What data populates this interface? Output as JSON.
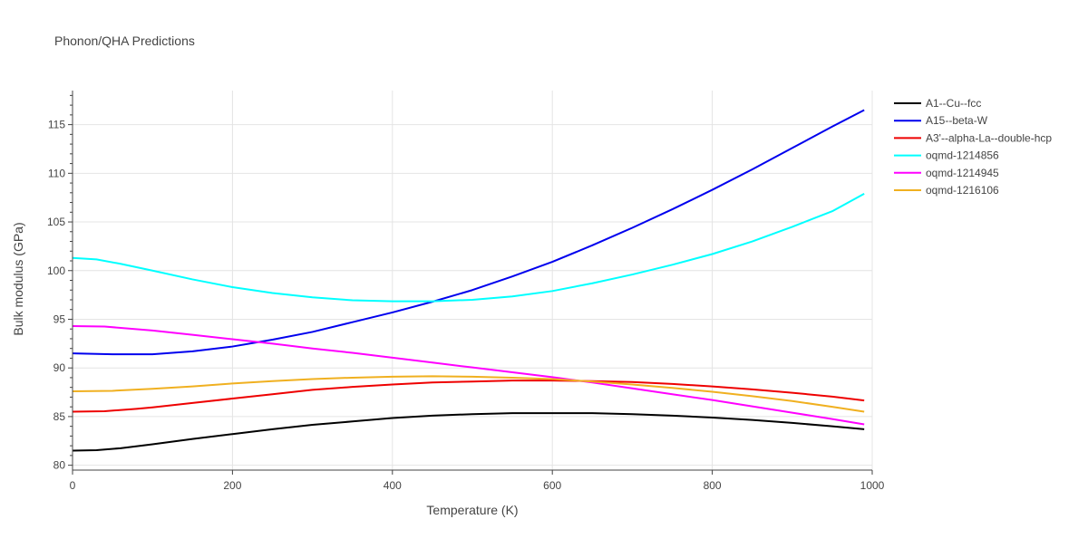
{
  "chart_data": {
    "type": "line",
    "title": "Phonon/QHA Predictions",
    "xlabel": "Temperature (K)",
    "ylabel": "Bulk modulus (GPa)",
    "xlim": [
      0,
      1000
    ],
    "ylim": [
      79.5,
      118.5
    ],
    "xticks": [
      0,
      200,
      400,
      600,
      800,
      1000
    ],
    "yticks": [
      80,
      85,
      90,
      95,
      100,
      105,
      110,
      115
    ],
    "grid": true,
    "legend_position": "top-right",
    "series": [
      {
        "name": "A1--Cu--fcc",
        "color": "#000000",
        "x": [
          0,
          30,
          60,
          100,
          150,
          200,
          250,
          300,
          350,
          400,
          450,
          500,
          550,
          600,
          650,
          700,
          750,
          800,
          850,
          900,
          950,
          990
        ],
        "y": [
          81.5,
          81.55,
          81.75,
          82.15,
          82.7,
          83.2,
          83.7,
          84.15,
          84.5,
          84.85,
          85.1,
          85.25,
          85.35,
          85.35,
          85.35,
          85.25,
          85.1,
          84.9,
          84.65,
          84.35,
          84.0,
          83.7
        ]
      },
      {
        "name": "A15--beta-W",
        "color": "#0000ee",
        "x": [
          0,
          50,
          100,
          150,
          200,
          250,
          300,
          350,
          400,
          450,
          500,
          550,
          600,
          650,
          700,
          750,
          800,
          850,
          900,
          950,
          990
        ],
        "y": [
          91.5,
          91.4,
          91.4,
          91.7,
          92.2,
          92.9,
          93.7,
          94.7,
          95.7,
          96.8,
          98.0,
          99.4,
          100.9,
          102.6,
          104.4,
          106.3,
          108.3,
          110.4,
          112.6,
          114.8,
          116.5
        ]
      },
      {
        "name": "A3'--alpha-La--double-hcp",
        "color": "#ee0000",
        "x": [
          0,
          40,
          80,
          100,
          150,
          200,
          250,
          300,
          350,
          400,
          450,
          500,
          550,
          600,
          650,
          700,
          750,
          800,
          850,
          900,
          950,
          990
        ],
        "y": [
          85.5,
          85.55,
          85.8,
          85.95,
          86.4,
          86.85,
          87.3,
          87.75,
          88.05,
          88.3,
          88.5,
          88.6,
          88.7,
          88.7,
          88.65,
          88.55,
          88.35,
          88.1,
          87.8,
          87.45,
          87.05,
          86.65
        ]
      },
      {
        "name": "oqmd-1214856",
        "color": "#00ffff",
        "x": [
          0,
          30,
          60,
          100,
          150,
          200,
          250,
          300,
          350,
          400,
          450,
          500,
          550,
          600,
          650,
          700,
          750,
          800,
          850,
          900,
          950,
          990
        ],
        "y": [
          101.3,
          101.15,
          100.7,
          100.0,
          99.1,
          98.3,
          97.7,
          97.25,
          96.95,
          96.85,
          96.85,
          97.0,
          97.35,
          97.9,
          98.7,
          99.6,
          100.6,
          101.7,
          103.0,
          104.5,
          106.1,
          107.9
        ]
      },
      {
        "name": "oqmd-1214945",
        "color": "#ff00ff",
        "x": [
          0,
          40,
          100,
          150,
          200,
          250,
          300,
          350,
          400,
          450,
          500,
          550,
          600,
          650,
          700,
          750,
          800,
          850,
          900,
          950,
          990
        ],
        "y": [
          94.3,
          94.25,
          93.85,
          93.4,
          92.95,
          92.5,
          92.0,
          91.55,
          91.05,
          90.55,
          90.05,
          89.55,
          89.05,
          88.5,
          87.9,
          87.3,
          86.7,
          86.05,
          85.4,
          84.75,
          84.2
        ]
      },
      {
        "name": "oqmd-1216106",
        "color": "#f0b020",
        "x": [
          0,
          50,
          100,
          150,
          200,
          250,
          300,
          350,
          400,
          450,
          500,
          550,
          600,
          650,
          700,
          750,
          800,
          850,
          900,
          950,
          990
        ],
        "y": [
          87.6,
          87.65,
          87.85,
          88.1,
          88.4,
          88.65,
          88.85,
          89.0,
          89.1,
          89.15,
          89.1,
          89.0,
          88.85,
          88.6,
          88.3,
          87.95,
          87.55,
          87.1,
          86.6,
          86.0,
          85.5
        ]
      }
    ]
  }
}
